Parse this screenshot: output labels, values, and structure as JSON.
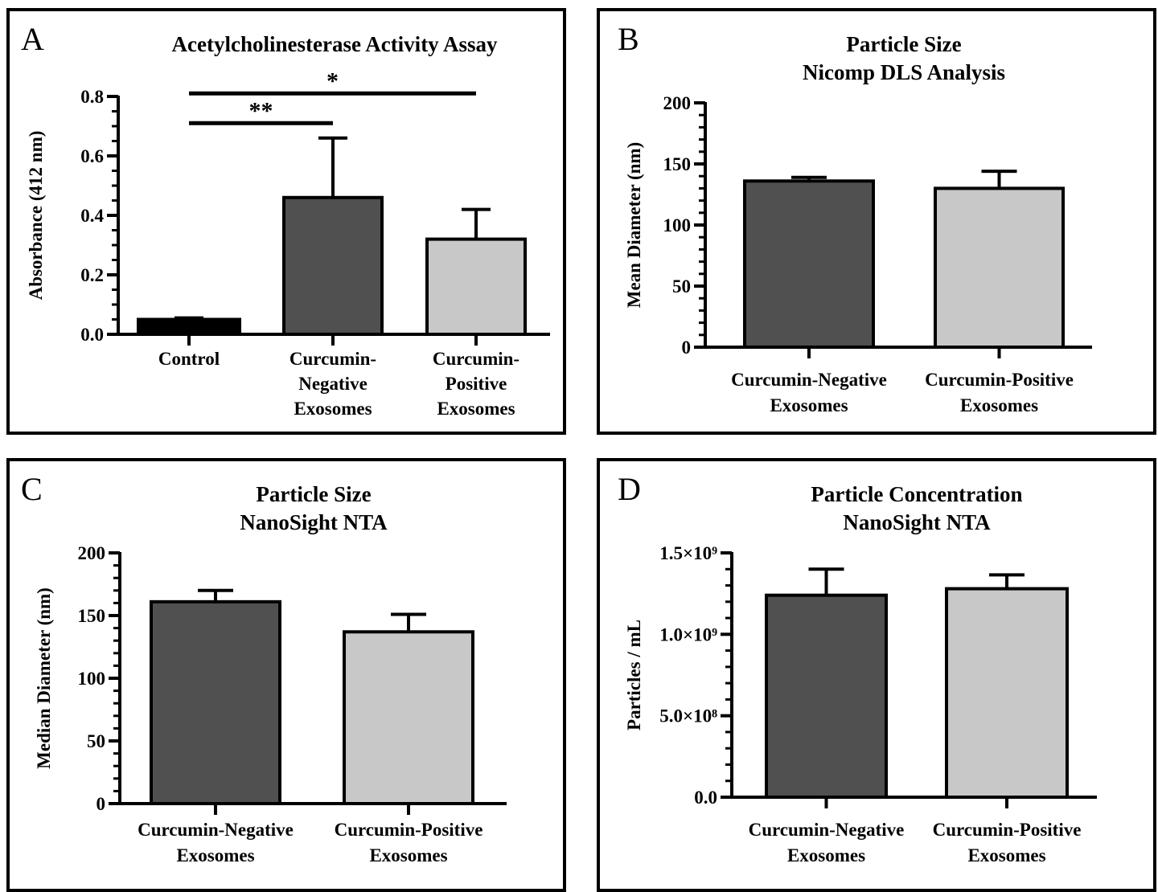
{
  "colors": {
    "control": "#000000",
    "negative": "#505050",
    "positive": "#c8c8c8",
    "axis": "#000000"
  },
  "chart_data": [
    {
      "panel": "A",
      "type": "bar",
      "title": [
        "Acetylcholinesterase Activity Assay"
      ],
      "ylabel": "Absorbance (412 nm)",
      "xlabel": "",
      "ylim": [
        0,
        0.8
      ],
      "yticks": [
        0.0,
        0.2,
        0.4,
        0.6,
        0.8
      ],
      "ytick_labels": [
        "0.0",
        "0.2",
        "0.4",
        "0.6",
        "0.8"
      ],
      "minor_ticks_per_major": 3,
      "categories": [
        [
          "Control"
        ],
        [
          "Curcumin-",
          "Negative",
          "Exosomes"
        ],
        [
          "Curcumin-",
          "Positive",
          "Exosomes"
        ]
      ],
      "values": [
        0.05,
        0.46,
        0.32
      ],
      "errors": [
        0.005,
        0.2,
        0.1
      ],
      "bar_colors": [
        "control",
        "negative",
        "positive"
      ],
      "significance": [
        {
          "from": 0,
          "to": 2,
          "y": 0.81,
          "label": "*"
        },
        {
          "from": 0,
          "to": 1,
          "y": 0.71,
          "label": "**"
        }
      ]
    },
    {
      "panel": "B",
      "type": "bar",
      "title": [
        "Particle Size",
        "Nicomp DLS Analysis"
      ],
      "ylabel": "Mean Diameter (nm)",
      "xlabel": "",
      "ylim": [
        0,
        200
      ],
      "yticks": [
        0,
        50,
        100,
        150,
        200
      ],
      "ytick_labels": [
        "0",
        "50",
        "100",
        "150",
        "200"
      ],
      "minor_ticks_per_major": 4,
      "categories": [
        [
          "Curcumin-Negative",
          "Exosomes"
        ],
        [
          "Curcumin-Positive",
          "Exosomes"
        ]
      ],
      "values": [
        136,
        130
      ],
      "errors": [
        3,
        14
      ],
      "bar_colors": [
        "negative",
        "positive"
      ],
      "significance": []
    },
    {
      "panel": "C",
      "type": "bar",
      "title": [
        "Particle Size",
        "NanoSight NTA"
      ],
      "ylabel": "Median Diameter (nm)",
      "xlabel": "",
      "ylim": [
        0,
        200
      ],
      "yticks": [
        0,
        50,
        100,
        150,
        200
      ],
      "ytick_labels": [
        "0",
        "50",
        "100",
        "150",
        "200"
      ],
      "minor_ticks_per_major": 4,
      "categories": [
        [
          "Curcumin-Negative",
          "Exosomes"
        ],
        [
          "Curcumin-Positive",
          "Exosomes"
        ]
      ],
      "values": [
        161,
        137
      ],
      "errors": [
        9,
        14
      ],
      "bar_colors": [
        "negative",
        "positive"
      ],
      "significance": []
    },
    {
      "panel": "D",
      "type": "bar",
      "title": [
        "Particle Concentration",
        "NanoSight NTA"
      ],
      "ylabel": "Particles / mL",
      "xlabel": "",
      "ylim": [
        0,
        1500000000
      ],
      "yticks": [
        0,
        500000000,
        1000000000,
        1500000000
      ],
      "ytick_labels": [
        "0.0",
        "5.0×10⁸",
        "1.0×10⁹",
        "1.5×10⁹"
      ],
      "minor_ticks_per_major": 4,
      "categories": [
        [
          "Curcumin-Negative",
          "Exosomes"
        ],
        [
          "Curcumin-Positive",
          "Exosomes"
        ]
      ],
      "values": [
        1240000000,
        1280000000
      ],
      "errors": [
        160000000,
        85000000
      ],
      "bar_colors": [
        "negative",
        "positive"
      ],
      "significance": []
    }
  ]
}
